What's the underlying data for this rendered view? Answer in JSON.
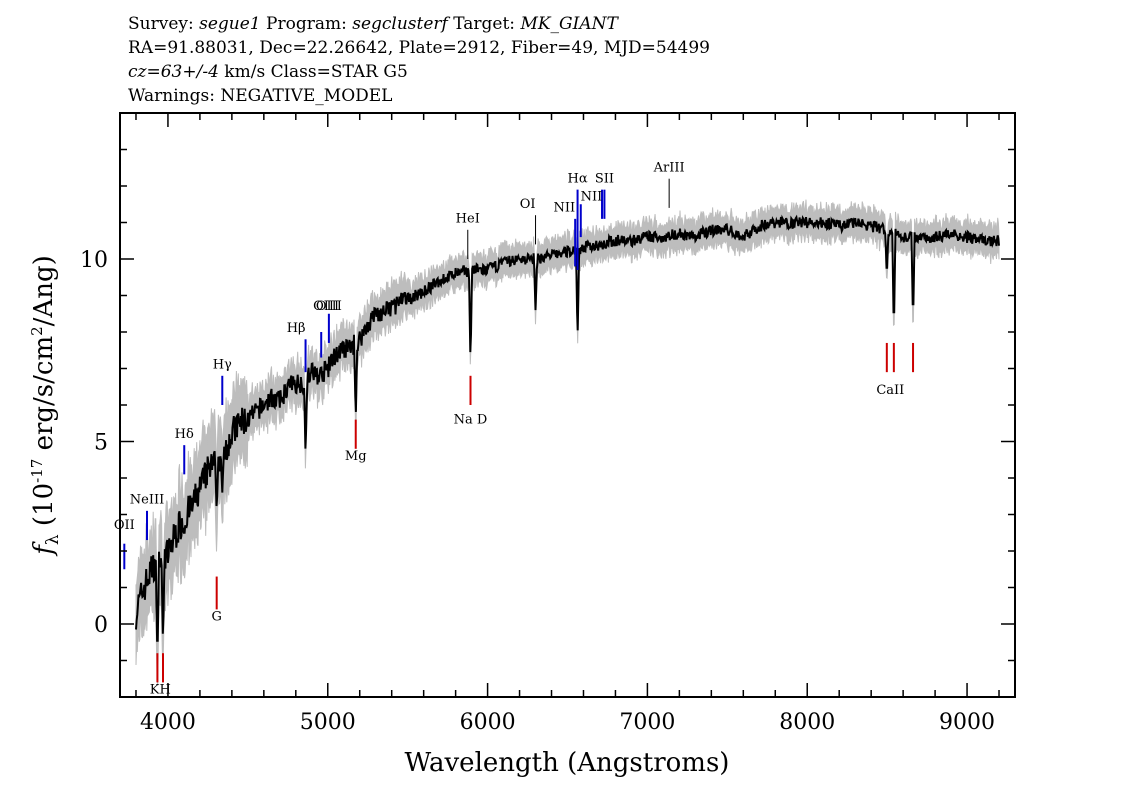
{
  "header": {
    "survey_label": "Survey:",
    "survey_value": "segue1",
    "program_label": "Program:",
    "program_value": "segclusterf",
    "target_label": "Target:",
    "target_value": "MK_GIANT",
    "line2": "RA=91.88031, Dec=22.26642, Plate=2912, Fiber=49, MJD=54499",
    "cz_value": "cz=63+/-4",
    "cz_rest": " km/s Class=STAR G5",
    "warnings": "Warnings: NEGATIVE_MODEL"
  },
  "colors": {
    "spectrum": "#000000",
    "error": "#bdbdbd",
    "emission": "#0000cc",
    "absorption": "#cc0000",
    "sky": "#000000"
  },
  "chart_data": {
    "type": "line",
    "title": "",
    "xlabel": "Wavelength (Angstroms)",
    "ylabel_parts": {
      "f": "f",
      "sub": "λ",
      "open": " (10",
      "exp": "-17",
      "rest": " erg/s/cm",
      "exp2": "2",
      "close": "/Ang)"
    },
    "xlim": [
      3700,
      9300
    ],
    "ylim": [
      -2,
      14
    ],
    "xticks": [
      4000,
      5000,
      6000,
      7000,
      8000,
      9000
    ],
    "yticks": [
      0,
      5,
      10
    ],
    "spectrum": {
      "x": [
        3800,
        3850,
        3900,
        3950,
        4000,
        4050,
        4100,
        4150,
        4200,
        4250,
        4300,
        4350,
        4400,
        4450,
        4500,
        4550,
        4600,
        4650,
        4700,
        4750,
        4800,
        4850,
        4900,
        4950,
        5000,
        5050,
        5100,
        5150,
        5200,
        5250,
        5300,
        5350,
        5400,
        5450,
        5500,
        5600,
        5700,
        5800,
        5900,
        6000,
        6100,
        6200,
        6300,
        6400,
        6500,
        6600,
        6700,
        6800,
        6900,
        7000,
        7100,
        7200,
        7300,
        7400,
        7500,
        7600,
        7700,
        7800,
        7900,
        8000,
        8100,
        8200,
        8300,
        8400,
        8500,
        8600,
        8700,
        8800,
        8900,
        9000,
        9100,
        9200
      ],
      "y": [
        0.3,
        1.0,
        1.5,
        1.8,
        1.9,
        2.5,
        2.9,
        3.2,
        3.7,
        4.2,
        4.4,
        4.8,
        5.2,
        5.5,
        5.6,
        5.8,
        6.0,
        6.2,
        6.1,
        6.5,
        6.6,
        6.6,
        6.9,
        6.8,
        7.0,
        7.4,
        7.5,
        7.6,
        7.8,
        8.2,
        8.5,
        8.5,
        8.7,
        8.8,
        8.9,
        9.1,
        9.4,
        9.6,
        9.7,
        9.7,
        9.9,
        10.0,
        10.0,
        10.1,
        10.2,
        10.3,
        10.4,
        10.5,
        10.5,
        10.6,
        10.6,
        10.7,
        10.6,
        10.8,
        10.8,
        10.6,
        10.9,
        11.0,
        11.0,
        11.0,
        11.0,
        10.9,
        11.0,
        10.9,
        10.8,
        10.6,
        10.6,
        10.6,
        10.7,
        10.6,
        10.5,
        10.5
      ]
    },
    "absorption_dips": [
      {
        "x": 3934,
        "y": -1.0
      },
      {
        "x": 3969,
        "y": -0.5
      },
      {
        "x": 4102,
        "y": 2.4
      },
      {
        "x": 4305,
        "y": 3.1
      },
      {
        "x": 4340,
        "y": 3.6
      },
      {
        "x": 4861,
        "y": 4.6
      },
      {
        "x": 5175,
        "y": 5.6
      },
      {
        "x": 5893,
        "y": 7.2
      },
      {
        "x": 6300,
        "y": 8.6
      },
      {
        "x": 6563,
        "y": 7.8
      },
      {
        "x": 8498,
        "y": 9.5
      },
      {
        "x": 8542,
        "y": 8.0
      },
      {
        "x": 8662,
        "y": 8.3
      }
    ],
    "emission_lines": [
      {
        "label": "OII",
        "x": 3727,
        "y0": 1.5,
        "y1": 2.2,
        "lx": 3727,
        "ly": 2.6,
        "anchor": "middle"
      },
      {
        "label": "NeIII",
        "x": 3869,
        "y0": 2.3,
        "y1": 3.1,
        "lx": 3869,
        "ly": 3.3,
        "anchor": "middle"
      },
      {
        "label": "Hδ",
        "x": 4102,
        "y0": 4.1,
        "y1": 4.9,
        "lx": 4102,
        "ly": 5.1,
        "anchor": "middle"
      },
      {
        "label": "Hγ",
        "x": 4340,
        "y0": 6.0,
        "y1": 6.8,
        "lx": 4340,
        "ly": 7.0,
        "anchor": "middle"
      },
      {
        "label": "Hβ",
        "x": 4861,
        "y0": 6.9,
        "y1": 7.8,
        "lx": 4861,
        "ly": 8.0,
        "anchor": "end"
      },
      {
        "label": "OIII",
        "x": 4959,
        "y0": 7.3,
        "y1": 8.0,
        "lx": 4990,
        "ly": 8.6,
        "anchor": "middle"
      },
      {
        "label": "OIII",
        "x": 5007,
        "y0": 7.7,
        "y1": 8.5,
        "lx": 5007,
        "ly": 8.6,
        "anchor": "middle"
      },
      {
        "label": "Hα",
        "x": 6563,
        "y0": 9.7,
        "y1": 11.9,
        "lx": 6563,
        "ly": 12.1,
        "anchor": "middle"
      },
      {
        "label": "NII",
        "x": 6548,
        "y0": 9.8,
        "y1": 11.1,
        "lx": 6548,
        "ly": 11.3,
        "anchor": "end"
      },
      {
        "label": "NII",
        "x": 6583,
        "y0": 10.6,
        "y1": 11.5,
        "lx": 6650,
        "ly": 11.6,
        "anchor": "middle"
      },
      {
        "label": "SII",
        "x": 6716,
        "y0": 11.1,
        "y1": 11.9,
        "lx": 6731,
        "ly": 12.1,
        "anchor": "middle"
      },
      {
        "label": "SII",
        "x": 6731,
        "y0": 11.1,
        "y1": 11.9,
        "lx": 6731,
        "ly": 12.1,
        "anchor": "middle"
      }
    ],
    "sky_lines": [
      {
        "label": "HeI",
        "x": 5876,
        "y0": 10.0,
        "y1": 10.8,
        "lx": 5876,
        "ly": 11.0,
        "anchor": "middle"
      },
      {
        "label": "OI",
        "x": 6300,
        "y0": 10.4,
        "y1": 11.2,
        "lx": 6300,
        "ly": 11.4,
        "anchor": "end"
      },
      {
        "label": "ArIII",
        "x": 7136,
        "y0": 11.4,
        "y1": 12.2,
        "lx": 7136,
        "ly": 12.4,
        "anchor": "middle"
      }
    ],
    "absorption_markers": [
      {
        "label": "K",
        "x": 3934,
        "y0": -1.6,
        "y1": -0.8
      },
      {
        "label": "H",
        "x": 3969,
        "y0": -1.6,
        "y1": -0.8
      },
      {
        "label": "G",
        "x": 4305,
        "y0": 0.4,
        "y1": 1.3
      },
      {
        "label": "Mg",
        "x": 5175,
        "y0": 4.8,
        "y1": 5.6
      },
      {
        "label": "Na",
        "x": 5893,
        "y0": 6.0,
        "y1": 6.8
      },
      {
        "label": "CaII",
        "x": 8498,
        "y0": 6.9,
        "y1": 7.7
      },
      {
        "label": "CaII",
        "x": 8542,
        "y0": 6.9,
        "y1": 7.7
      },
      {
        "label": "CaII",
        "x": 8662,
        "y0": 6.9,
        "y1": 7.7
      }
    ],
    "absorption_labels": [
      {
        "label": "KH",
        "x": 3952,
        "y": -1.9
      },
      {
        "label": "G",
        "x": 4305,
        "y": 0.1
      },
      {
        "label": "Mg",
        "x": 5175,
        "y": 4.5
      },
      {
        "label": "Na  D",
        "x": 5893,
        "y": 5.5
      },
      {
        "label": "CaII",
        "x": 8520,
        "y": 6.3
      }
    ]
  }
}
